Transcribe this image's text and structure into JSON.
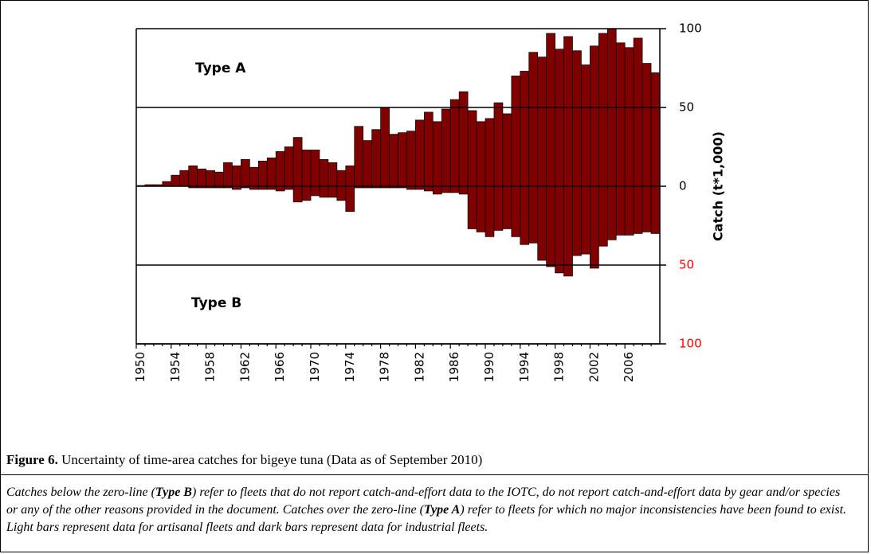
{
  "chart_data": {
    "type": "bar",
    "ylabel": "Catch (t*1,000)",
    "categories": [
      "1950",
      null,
      null,
      null,
      "1954",
      null,
      null,
      null,
      "1958",
      null,
      null,
      null,
      "1962",
      null,
      null,
      null,
      "1966",
      null,
      null,
      null,
      "1970",
      null,
      null,
      null,
      "1974",
      null,
      null,
      null,
      "1978",
      null,
      null,
      null,
      "1982",
      null,
      null,
      null,
      "1986",
      null,
      null,
      null,
      "1990",
      null,
      null,
      null,
      "1994",
      null,
      null,
      null,
      "1998",
      null,
      null,
      null,
      "2002",
      null,
      null,
      null,
      "2006",
      null,
      null,
      null
    ],
    "series": [
      {
        "name": "Type A",
        "color": "#800000",
        "values": [
          0.5,
          1,
          1,
          3,
          7,
          10,
          13,
          11,
          10,
          9,
          15,
          13,
          17,
          12,
          16,
          18,
          22,
          25,
          31,
          23,
          23,
          17,
          15,
          10,
          13,
          38,
          29,
          36,
          50,
          33,
          34,
          35,
          42,
          47,
          41,
          49,
          55,
          60,
          48,
          41,
          43,
          53,
          46,
          70,
          73,
          85,
          82,
          97,
          87,
          95,
          86,
          77,
          89,
          97,
          100,
          91,
          88,
          94,
          78,
          72
        ]
      },
      {
        "name": "Type B",
        "color": "#800000",
        "values": [
          0,
          0,
          0,
          0,
          0,
          0,
          -1,
          -1,
          -1,
          -1,
          -1,
          -2,
          -1,
          -2,
          -2,
          -2,
          -3,
          -2,
          -10,
          -9,
          -6,
          -7,
          -7,
          -9,
          -16,
          -1,
          -1,
          -1,
          -1,
          -1,
          -1,
          -2,
          -2,
          -3,
          -5,
          -4,
          -4,
          -5,
          -27,
          -29,
          -32,
          -28,
          -27,
          -32,
          -37,
          -36,
          -47,
          -51,
          -55,
          -57,
          -44,
          -43,
          -52,
          -38,
          -34,
          -31,
          -31,
          -30,
          -29,
          -30
        ]
      }
    ],
    "ylim": [
      -100,
      100
    ],
    "yticks": [
      100,
      50,
      0,
      {
        "value": -50,
        "label": "50"
      },
      {
        "value": -100,
        "label": "100"
      }
    ],
    "negative_tick_color": "#ff0000",
    "grid": true
  },
  "caption": {
    "label": "Figure 6.",
    "text": " Uncertainty of time-area catches for bigeye tuna (Data as of September 2010)"
  },
  "note": [
    "Catches below the zero-line (",
    "Type B",
    ") refer to fleets that do not report catch-and-effort data to the IOTC, do not report catch-and-effort data by gear and/or species or any of the other reasons provided in the document. Catches over the zero-line (",
    "Type A",
    ") refer to fleets for which no major inconsistencies have been found to exist. Light bars represent data for artisanal fleets and dark bars represent data for industrial fleets."
  ]
}
